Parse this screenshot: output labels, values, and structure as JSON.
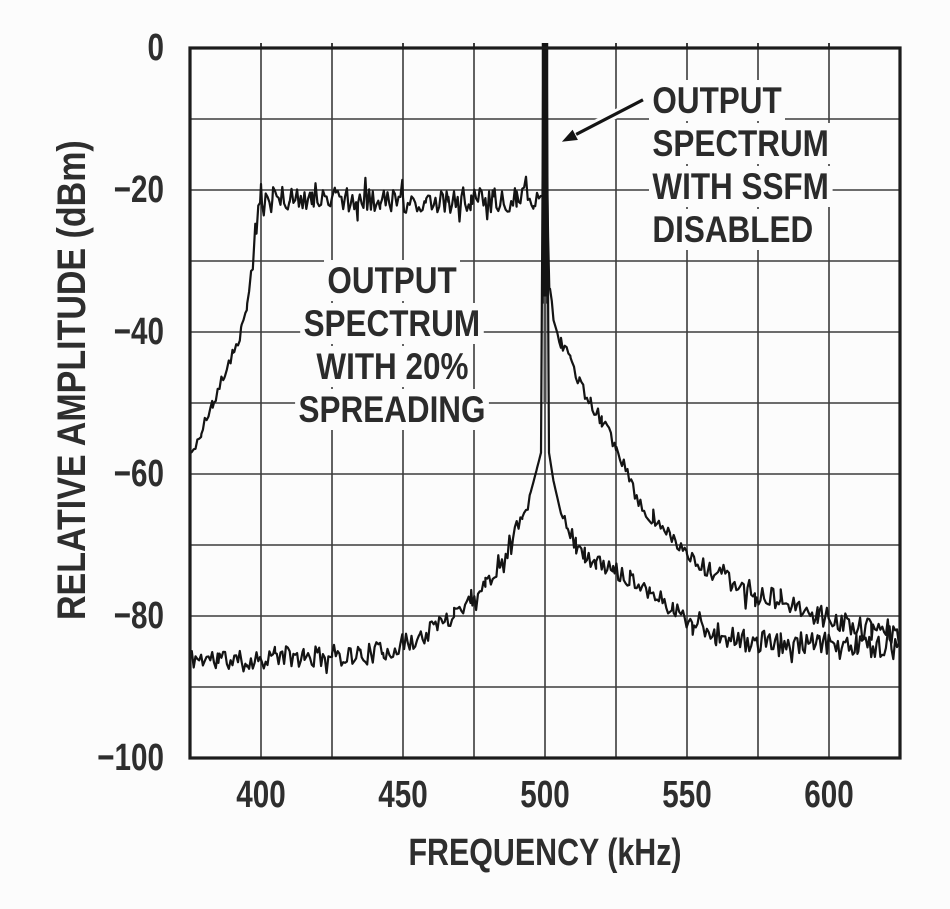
{
  "chart_data": {
    "type": "line",
    "title": "",
    "xlabel": "FREQUENCY (kHz)",
    "ylabel": "RELATIVE AMPLITUDE (dBm)",
    "xlim": [
      375,
      625
    ],
    "ylim": [
      -100,
      0
    ],
    "grid": true,
    "x_grid_step_khz": 25,
    "y_grid_step_db": 10,
    "x_tick_values": [
      400,
      450,
      500,
      550,
      600
    ],
    "x_tick_labels": [
      "400",
      "450",
      "500",
      "550",
      "600"
    ],
    "y_tick_values": [
      0,
      -20,
      -40,
      -60,
      -80,
      -100
    ],
    "y_tick_labels": [
      "0",
      "−20",
      "−40",
      "−60",
      "−80",
      "−100"
    ],
    "series": [
      {
        "name": "OUTPUT SPECTRUM WITH SSFM DISABLED",
        "description": "Narrow carrier spike at 500 kHz reaching 0 dBm, noise floor near −86 dBm",
        "spike": {
          "freq_khz": 500,
          "peak_dbm": 0
        },
        "noise_db": [
          [
            375,
            494,
            1.5
          ],
          [
            494,
            505,
            0
          ],
          [
            505,
            545,
            1.2
          ],
          [
            545,
            625,
            1.7
          ]
        ],
        "points": [
          [
            375,
            -86
          ],
          [
            385,
            -86
          ],
          [
            395,
            -86.5
          ],
          [
            405,
            -85.5
          ],
          [
            415,
            -86
          ],
          [
            425,
            -85.5
          ],
          [
            435,
            -85.5
          ],
          [
            443,
            -85
          ],
          [
            450,
            -84
          ],
          [
            456,
            -83
          ],
          [
            462,
            -81.5
          ],
          [
            468,
            -79.5
          ],
          [
            474,
            -77.5
          ],
          [
            479,
            -75.5
          ],
          [
            484,
            -72.5
          ],
          [
            488,
            -69.5
          ],
          [
            492,
            -66
          ],
          [
            495,
            -62.5
          ],
          [
            497,
            -59.5
          ],
          [
            498.6,
            -57
          ],
          [
            499.4,
            0
          ],
          [
            500.6,
            0
          ],
          [
            501.4,
            -57
          ],
          [
            503,
            -61
          ],
          [
            505,
            -64.5
          ],
          [
            508,
            -67.5
          ],
          [
            511,
            -70
          ],
          [
            514,
            -71.5
          ],
          [
            518,
            -72.5
          ],
          [
            524,
            -73.5
          ],
          [
            530,
            -74.5
          ],
          [
            537,
            -76.5
          ],
          [
            545,
            -79
          ],
          [
            552,
            -81
          ],
          [
            560,
            -82.5
          ],
          [
            570,
            -83.5
          ],
          [
            583,
            -84
          ],
          [
            596,
            -84
          ],
          [
            610,
            -84
          ],
          [
            625,
            -84.5
          ]
        ]
      },
      {
        "name": "OUTPUT SPECTRUM WITH 20% SPREADING",
        "description": "Flat-topped spread spectrum near −21 dBm from 400 kHz to 500 kHz",
        "noise_db": [
          [
            375,
            397,
            0.8
          ],
          [
            397,
            500,
            1.8
          ],
          [
            500,
            555,
            0.9
          ],
          [
            555,
            625,
            1.6
          ]
        ],
        "points": [
          [
            375,
            -57.5
          ],
          [
            379,
            -54
          ],
          [
            383,
            -50
          ],
          [
            387,
            -46
          ],
          [
            390,
            -43
          ],
          [
            393,
            -40
          ],
          [
            395,
            -36.5
          ],
          [
            396.5,
            -32
          ],
          [
            398,
            -26
          ],
          [
            399.3,
            -21.5
          ],
          [
            400,
            -20.6
          ],
          [
            404,
            -21.4
          ],
          [
            410,
            -21.2
          ],
          [
            418,
            -21.6
          ],
          [
            426,
            -21.1
          ],
          [
            434,
            -21.5
          ],
          [
            442,
            -21.3
          ],
          [
            450,
            -21.6
          ],
          [
            458,
            -21.2
          ],
          [
            466,
            -21.5
          ],
          [
            474,
            -21.3
          ],
          [
            482,
            -21.5
          ],
          [
            490,
            -21.2
          ],
          [
            496,
            -21.4
          ],
          [
            499.2,
            -20.7
          ],
          [
            500.8,
            -20.7
          ],
          [
            501.5,
            -33
          ],
          [
            503,
            -37.5
          ],
          [
            505.6,
            -41.5
          ],
          [
            509,
            -44.5
          ],
          [
            512,
            -47
          ],
          [
            516,
            -50
          ],
          [
            520,
            -52.5
          ],
          [
            525,
            -56
          ],
          [
            530,
            -61
          ],
          [
            533,
            -64
          ],
          [
            538,
            -66.5
          ],
          [
            544,
            -68.5
          ],
          [
            550,
            -71.5
          ],
          [
            558,
            -73.5
          ],
          [
            566,
            -75.5
          ],
          [
            574,
            -76.8
          ],
          [
            583,
            -77.7
          ],
          [
            590,
            -78.8
          ],
          [
            596,
            -80
          ],
          [
            605,
            -81
          ],
          [
            615,
            -82
          ],
          [
            625,
            -82.5
          ]
        ]
      }
    ],
    "annotations": [
      {
        "lines": [
          "OUTPUT",
          "SPECTRUM",
          "WITH SSFM",
          "DISABLED"
        ],
        "arrow": {
          "from_khz": 534.5,
          "from_dbm": -7.3,
          "to_khz": 505.5,
          "to_dbm": -13.3
        }
      },
      {
        "lines": [
          "OUTPUT",
          "SPECTRUM",
          "WITH 20%",
          "SPREADING"
        ]
      }
    ],
    "colors": {
      "trace": "#141414",
      "spike_lower": "#4f4f4f",
      "grid": "#3c3c3c",
      "frame": "#1c1c1c",
      "text": "#2e2e2e",
      "background": "#fcfcfc"
    }
  }
}
